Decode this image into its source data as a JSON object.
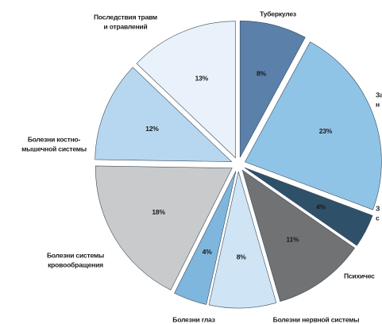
{
  "chart_data": {
    "type": "pie",
    "labels": [
      [
        "Туберкулез"
      ],
      [
        "За",
        "н"
      ],
      [
        "З",
        "с"
      ],
      [
        "Психичес"
      ],
      [
        "Болезни нервной системы"
      ],
      [
        "Болезни глаз"
      ],
      [
        "Болезни системы",
        "кровообращения"
      ],
      [
        "Болезни костно-",
        "мышечной системы"
      ],
      [
        "Последствия травм",
        "и отравлений"
      ]
    ],
    "values": [
      8,
      23,
      4,
      11,
      8,
      4,
      18,
      12,
      13
    ],
    "value_labels": [
      "8%",
      "23%",
      "4%",
      "11%",
      "8%",
      "4%",
      "18%",
      "12%",
      "13%"
    ],
    "colors": [
      "#5b80aa",
      "#8fc4e7",
      "#2f5069",
      "#707274",
      "#cfe4f4",
      "#7fb6dd",
      "#c9cacb",
      "#b6d7ef",
      "#e9f2fa"
    ]
  }
}
